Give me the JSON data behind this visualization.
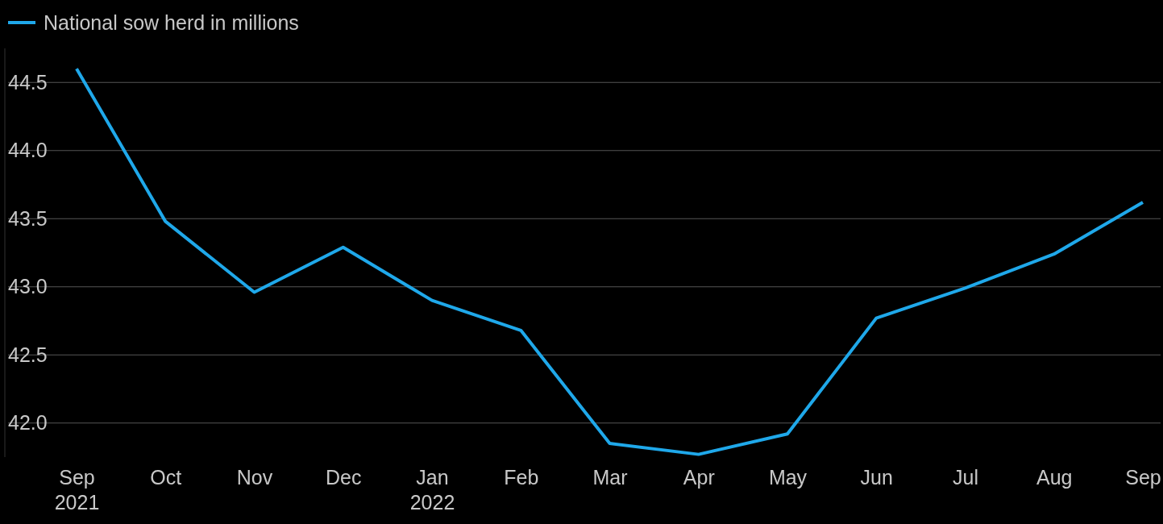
{
  "chart_data": {
    "type": "line",
    "categories": [
      "Sep 2021",
      "Oct",
      "Nov",
      "Dec",
      "Jan 2022",
      "Feb",
      "Mar",
      "Apr",
      "May",
      "Jun",
      "Jul",
      "Aug",
      "Sep"
    ],
    "series": [
      {
        "name": "National sow herd in millions",
        "color": "#1fa8ea",
        "values": [
          44.6,
          43.48,
          42.96,
          43.29,
          42.9,
          42.68,
          41.85,
          41.77,
          41.92,
          42.77,
          42.99,
          43.24,
          43.62
        ]
      }
    ],
    "ylim": [
      41.75,
      44.75
    ],
    "yticks": [
      {
        "value": 42,
        "label": "42.0"
      },
      {
        "value": 42.5,
        "label": "42.5"
      },
      {
        "value": 43,
        "label": "43.0"
      },
      {
        "value": 43.5,
        "label": "43.5"
      },
      {
        "value": 44,
        "label": "44.0"
      },
      {
        "value": 44.5,
        "label": "44.5"
      }
    ],
    "grid": "y",
    "legend": "top left",
    "marker": "none",
    "line_style": "solid"
  }
}
